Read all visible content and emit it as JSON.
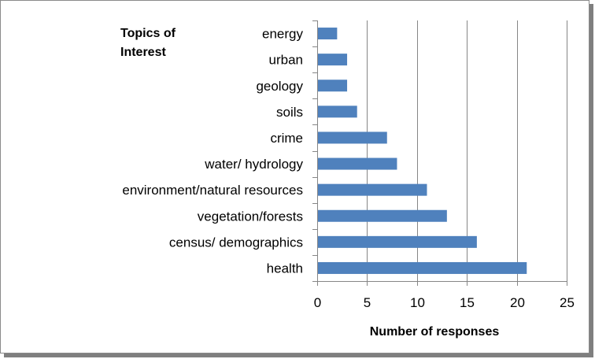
{
  "chart_data": {
    "type": "bar",
    "orientation": "horizontal",
    "title": [
      "Topics of",
      "Interest"
    ],
    "xlabel": "Number of responses",
    "ylabel": "",
    "categories": [
      "energy",
      "urban",
      "geology",
      "soils",
      "crime",
      "water/ hydrology",
      "environment/natural resources",
      "vegetation/forests",
      "census/ demographics",
      "health"
    ],
    "values": [
      2,
      3,
      3,
      4,
      7,
      8,
      11,
      13,
      16,
      21
    ],
    "xlim": [
      0,
      25
    ],
    "xticks": [
      0,
      5,
      10,
      15,
      20,
      25
    ],
    "grid": "vertical",
    "bar_color": "#4f81bd"
  }
}
